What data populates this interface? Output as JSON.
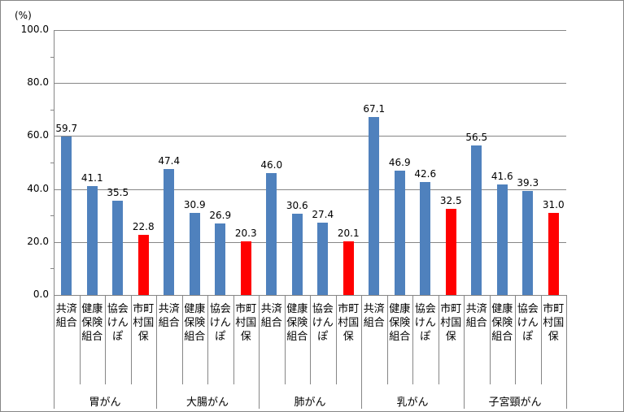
{
  "chart_data": {
    "type": "bar",
    "title": "",
    "xlabel": "",
    "ylabel": "(%)",
    "ylim": [
      0,
      100
    ],
    "yticks": [
      "0.0",
      "20.0",
      "40.0",
      "60.0",
      "80.0",
      "100.0"
    ],
    "grid": true,
    "legend": null,
    "groups": [
      "胃がん",
      "大腸がん",
      "肺がん",
      "乳がん",
      "子宮頸がん"
    ],
    "categories": [
      "共済組合",
      "健康保険組合",
      "協会けんぽ",
      "市町村国保"
    ],
    "series": [
      {
        "name": "共済組合",
        "color": "#4F81BD",
        "values": [
          59.7,
          47.4,
          46.0,
          67.1,
          56.5
        ]
      },
      {
        "name": "健康保険組合",
        "color": "#4F81BD",
        "values": [
          41.1,
          30.9,
          30.6,
          46.9,
          41.6
        ]
      },
      {
        "name": "協会けんぽ",
        "color": "#4F81BD",
        "values": [
          35.5,
          26.9,
          27.4,
          42.6,
          39.3
        ]
      },
      {
        "name": "市町村国保",
        "color": "#FF0000",
        "values": [
          22.8,
          20.3,
          20.1,
          32.5,
          31.0
        ]
      }
    ]
  },
  "unit_label": "(%)"
}
